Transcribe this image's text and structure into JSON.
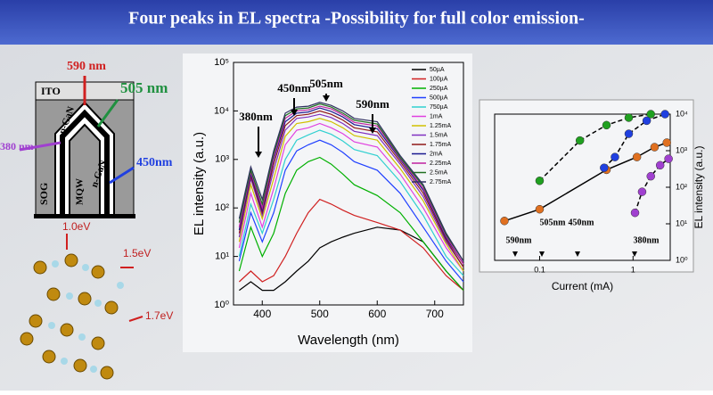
{
  "slide": {
    "title": "Four peaks in EL spectra   -Possibility for full color emission-",
    "diagram": {
      "emission": [
        "590 nm",
        "505 nm",
        "450nm",
        "380 nm"
      ],
      "layers": [
        "ITO",
        "p-GaN",
        "SOG",
        "MQW",
        "n-GaN"
      ],
      "energies": [
        "1.0eV",
        "1.5eV",
        "1.7eV"
      ]
    }
  },
  "chart_data": [
    {
      "type": "line",
      "x_label": "Wavelength (nm)",
      "y_label": "EL intensity (a.u.)",
      "log_y": true,
      "annotations": [
        "380nm",
        "450nm",
        "505nm",
        "590nm"
      ],
      "xlim": [
        350,
        750
      ],
      "xticks": [
        400,
        500,
        600,
        700
      ],
      "ylim": [
        1,
        100000
      ],
      "yticks": [
        {
          "value": 1,
          "label": "10⁰"
        },
        {
          "value": 10,
          "label": "10¹"
        },
        {
          "value": 100,
          "label": "10²"
        },
        {
          "value": 1000,
          "label": "10³"
        },
        {
          "value": 10000,
          "label": "10⁴"
        },
        {
          "value": 100000,
          "label": "10⁵"
        }
      ],
      "x": [
        360,
        380,
        400,
        420,
        440,
        460,
        480,
        500,
        520,
        540,
        560,
        600,
        640,
        680,
        720,
        750
      ],
      "series": [
        {
          "name": "50µA",
          "color": "#000000",
          "values": [
            2,
            3,
            2,
            2,
            3,
            5,
            8,
            15,
            20,
            25,
            30,
            40,
            35,
            20,
            5,
            2
          ]
        },
        {
          "name": "100µA",
          "color": "#d02020",
          "values": [
            3,
            5,
            3,
            4,
            10,
            30,
            80,
            150,
            120,
            90,
            70,
            50,
            35,
            15,
            4,
            2
          ]
        },
        {
          "name": "250µA",
          "color": "#00b000",
          "values": [
            5,
            40,
            10,
            30,
            200,
            600,
            900,
            1100,
            800,
            500,
            300,
            180,
            80,
            20,
            5,
            2
          ]
        },
        {
          "name": "500µA",
          "color": "#2040ff",
          "values": [
            8,
            80,
            20,
            80,
            600,
            1500,
            2000,
            2500,
            2000,
            1400,
            900,
            600,
            200,
            40,
            8,
            3
          ]
        },
        {
          "name": "750µA",
          "color": "#30d0d0",
          "values": [
            10,
            120,
            30,
            150,
            1000,
            2500,
            3200,
            4000,
            3300,
            2400,
            1600,
            1200,
            350,
            70,
            10,
            4
          ]
        },
        {
          "name": "1mA",
          "color": "#e040e0",
          "values": [
            15,
            200,
            40,
            250,
            2000,
            4000,
            4500,
            5500,
            4500,
            3400,
            2300,
            1800,
            500,
            100,
            15,
            5
          ]
        },
        {
          "name": "1.25mA",
          "color": "#d0c000",
          "values": [
            20,
            300,
            60,
            400,
            3000,
            5500,
            6000,
            7000,
            6000,
            4500,
            3100,
            2500,
            650,
            140,
            18,
            5
          ]
        },
        {
          "name": "1.5mA",
          "color": "#8030c0",
          "values": [
            25,
            400,
            70,
            600,
            4000,
            7000,
            7500,
            8500,
            7300,
            5500,
            3800,
            3100,
            800,
            170,
            20,
            6
          ]
        },
        {
          "name": "1.75mA",
          "color": "#901818",
          "values": [
            30,
            450,
            80,
            800,
            5000,
            8000,
            8500,
            10000,
            8500,
            6500,
            4500,
            3700,
            900,
            200,
            22,
            6
          ]
        },
        {
          "name": "2mA",
          "color": "#1a1a90",
          "values": [
            35,
            500,
            90,
            1000,
            6000,
            9000,
            9500,
            11500,
            9800,
            7500,
            5200,
            4300,
            1000,
            230,
            24,
            7
          ]
        },
        {
          "name": "2.25mA",
          "color": "#c020a0",
          "values": [
            40,
            550,
            100,
            1100,
            7000,
            10000,
            10500,
            12500,
            11000,
            8300,
            5800,
            4900,
            1050,
            250,
            26,
            7
          ]
        },
        {
          "name": "2.5mA",
          "color": "#207020",
          "values": [
            50,
            600,
            120,
            1300,
            8000,
            11000,
            11500,
            14000,
            12000,
            9000,
            6400,
            5400,
            1100,
            280,
            28,
            8
          ]
        },
        {
          "name": "2.75mA",
          "color": "#303060",
          "values": [
            60,
            700,
            150,
            1500,
            9000,
            12000,
            12500,
            15000,
            13000,
            10000,
            7000,
            6000,
            1200,
            300,
            30,
            8
          ]
        }
      ]
    },
    {
      "type": "scatter",
      "x_label": "Current (mA)",
      "y_label": "EL intensity (a.u.)",
      "log_x": true,
      "log_y": true,
      "xlim": [
        0.033,
        2.5
      ],
      "xticks": [
        0.1,
        1
      ],
      "ylim": [
        1,
        10000
      ],
      "yticks": [
        {
          "value": 1,
          "label": "10⁰"
        },
        {
          "value": 10,
          "label": "10¹"
        },
        {
          "value": 100,
          "label": "10²"
        },
        {
          "value": 1000,
          "label": "10³"
        },
        {
          "value": 10000,
          "label": "10⁴"
        }
      ],
      "series": [
        {
          "name": "590nm",
          "color": "#e07020",
          "x": [
            0.042,
            0.1,
            0.52,
            1.1,
            1.7,
            2.3
          ],
          "values": [
            12,
            25,
            300,
            670,
            1250,
            1660
          ]
        },
        {
          "name": "505nm",
          "color": "#20a020",
          "x": [
            0.1,
            0.27,
            0.52,
            0.9,
            1.55
          ],
          "values": [
            150,
            1900,
            5000,
            8000,
            10000
          ]
        },
        {
          "name": "450nm",
          "color": "#2040e0",
          "x": [
            0.49,
            0.64,
            0.9,
            1.4,
            2.2
          ],
          "values": [
            340,
            670,
            2900,
            6600,
            10000
          ]
        },
        {
          "name": "380nm",
          "color": "#a040d0",
          "x": [
            1.05,
            1.25,
            1.55,
            1.95,
            2.4
          ],
          "values": [
            20,
            75,
            200,
            400,
            600
          ]
        }
      ]
    }
  ]
}
